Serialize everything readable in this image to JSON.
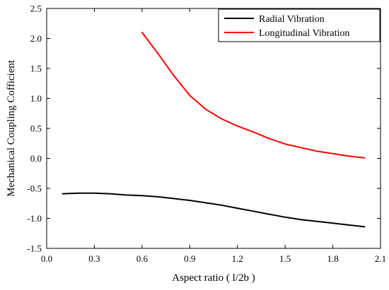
{
  "chart_data": {
    "type": "line",
    "title": "",
    "xlabel": "Aspect ratio ( l/2b )",
    "ylabel": "Mechanical Coupling Cofficient",
    "xlim": [
      0.0,
      2.1
    ],
    "ylim": [
      -1.5,
      2.5
    ],
    "xticks": [
      "0.0",
      "0.3",
      "0.6",
      "0.9",
      "1.2",
      "1.5",
      "1.8",
      "2.1"
    ],
    "yticks": [
      "-1.5",
      "-1.0",
      "-0.5",
      "0.0",
      "0.5",
      "1.0",
      "1.5",
      "2.0",
      "2.5"
    ],
    "grid": false,
    "legend_position": "top-right",
    "series": [
      {
        "name": "Radial Vibration",
        "color": "#000000",
        "x": [
          0.1,
          0.2,
          0.3,
          0.4,
          0.5,
          0.6,
          0.7,
          0.8,
          0.9,
          1.0,
          1.1,
          1.2,
          1.3,
          1.4,
          1.5,
          1.6,
          1.7,
          1.8,
          1.9,
          2.0
        ],
        "y": [
          -0.59,
          -0.58,
          -0.58,
          -0.59,
          -0.61,
          -0.62,
          -0.64,
          -0.67,
          -0.7,
          -0.74,
          -0.78,
          -0.83,
          -0.88,
          -0.93,
          -0.98,
          -1.02,
          -1.05,
          -1.08,
          -1.11,
          -1.14
        ]
      },
      {
        "name": "Longitudinal Vibration",
        "color": "#ff0000",
        "x": [
          0.6,
          0.7,
          0.8,
          0.9,
          1.0,
          1.1,
          1.2,
          1.3,
          1.4,
          1.5,
          1.6,
          1.7,
          1.8,
          1.9,
          2.0
        ],
        "y": [
          2.1,
          1.75,
          1.38,
          1.05,
          0.82,
          0.66,
          0.54,
          0.44,
          0.33,
          0.24,
          0.18,
          0.12,
          0.08,
          0.04,
          0.01
        ]
      }
    ]
  }
}
